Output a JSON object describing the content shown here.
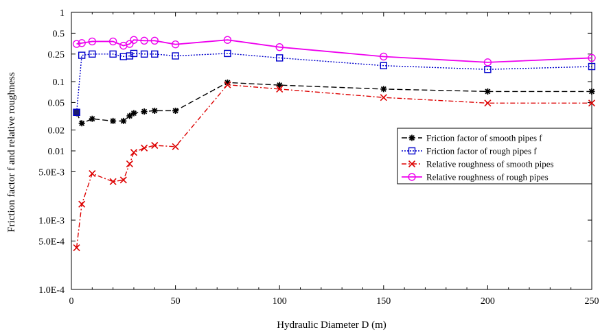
{
  "chart_data": {
    "type": "line",
    "title": "",
    "xlabel": "Hydraulic Diameter D (m)",
    "ylabel": "Friction factor f and relative roughness",
    "xlim": [
      0,
      250
    ],
    "ylim": [
      0.0001,
      1
    ],
    "yscale": "log",
    "grid": false,
    "legend_position": "right",
    "x_ticks": [
      {
        "value": 0,
        "label": "0"
      },
      {
        "value": 50,
        "label": "50"
      },
      {
        "value": 100,
        "label": "100"
      },
      {
        "value": 150,
        "label": "150"
      },
      {
        "value": 200,
        "label": "200"
      },
      {
        "value": 250,
        "label": "250"
      }
    ],
    "y_ticks": [
      {
        "value": 1,
        "label": "1"
      },
      {
        "value": 0.5,
        "label": "0.5"
      },
      {
        "value": 0.25,
        "label": "0.25"
      },
      {
        "value": 0.1,
        "label": "0.1"
      },
      {
        "value": 0.05,
        "label": "0.05"
      },
      {
        "value": 0.02,
        "label": "0.02"
      },
      {
        "value": 0.01,
        "label": "0.01"
      },
      {
        "value": 0.005,
        "label": "5.0E-3"
      },
      {
        "value": 0.001,
        "label": "1.0E-3"
      },
      {
        "value": 0.0005,
        "label": "5.0E-4"
      },
      {
        "value": 0.0001,
        "label": "1.0E-4"
      }
    ],
    "series": [
      {
        "name": "Friction factor of smooth pipes f",
        "color": "#000000",
        "marker": "asterisk",
        "dash": "8,4",
        "points": [
          [
            2.5,
            0.035
          ],
          [
            5,
            0.025
          ],
          [
            10,
            0.029
          ],
          [
            20,
            0.027
          ],
          [
            25,
            0.027
          ],
          [
            28,
            0.032
          ],
          [
            30,
            0.035
          ],
          [
            35,
            0.037
          ],
          [
            40,
            0.038
          ],
          [
            50,
            0.038
          ],
          [
            75,
            0.097
          ],
          [
            100,
            0.089
          ],
          [
            150,
            0.078
          ],
          [
            200,
            0.072
          ],
          [
            250,
            0.072
          ]
        ]
      },
      {
        "name": "Friction factor of rough pipes f",
        "color": "#0000cc",
        "marker": "square",
        "dash": "2,2",
        "points": [
          [
            2.5,
            0.036
          ],
          [
            5,
            0.24
          ],
          [
            10,
            0.25
          ],
          [
            20,
            0.25
          ],
          [
            25,
            0.23
          ],
          [
            28,
            0.235
          ],
          [
            30,
            0.255
          ],
          [
            35,
            0.25
          ],
          [
            40,
            0.25
          ],
          [
            50,
            0.235
          ],
          [
            75,
            0.255
          ],
          [
            100,
            0.22
          ],
          [
            150,
            0.17
          ],
          [
            200,
            0.15
          ],
          [
            250,
            0.165
          ]
        ]
      },
      {
        "name": "Relative roughness of smooth pipes",
        "color": "#dd0000",
        "marker": "x",
        "dash": "7,3,2,3",
        "points": [
          [
            2.5,
            0.0004
          ],
          [
            5,
            0.0017
          ],
          [
            10,
            0.0047
          ],
          [
            20,
            0.0036
          ],
          [
            25,
            0.0038
          ],
          [
            28,
            0.0065
          ],
          [
            30,
            0.0095
          ],
          [
            35,
            0.011
          ],
          [
            40,
            0.012
          ],
          [
            50,
            0.0115
          ],
          [
            75,
            0.09
          ],
          [
            100,
            0.078
          ],
          [
            150,
            0.059
          ],
          [
            200,
            0.049
          ],
          [
            250,
            0.049
          ]
        ]
      },
      {
        "name": "Relative roughness of rough pipes",
        "color": "#ee00ee",
        "marker": "circle",
        "dash": "",
        "points": [
          [
            2.5,
            0.35
          ],
          [
            5,
            0.36
          ],
          [
            10,
            0.38
          ],
          [
            20,
            0.38
          ],
          [
            25,
            0.33
          ],
          [
            28,
            0.35
          ],
          [
            30,
            0.4
          ],
          [
            35,
            0.39
          ],
          [
            40,
            0.39
          ],
          [
            50,
            0.345
          ],
          [
            75,
            0.4
          ],
          [
            100,
            0.315
          ],
          [
            150,
            0.23
          ],
          [
            200,
            0.19
          ],
          [
            250,
            0.22
          ]
        ]
      }
    ]
  }
}
